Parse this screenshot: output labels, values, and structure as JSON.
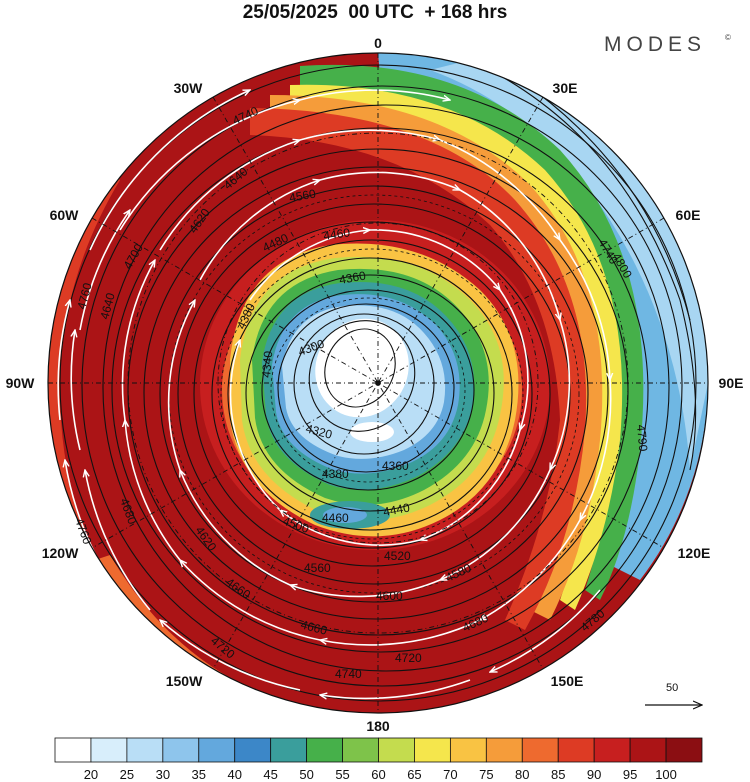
{
  "title": "25/05/2025  00 UTC  + 168 hrs",
  "brand": "MODES",
  "brand_mark": "©",
  "longitude_labels": {
    "lon_0": "0",
    "lon_30e": "30E",
    "lon_60e": "60E",
    "lon_90e": "90E",
    "lon_120e": "120E",
    "lon_150e": "150E",
    "lon_180": "180",
    "lon_150w": "150W",
    "lon_120w": "120W",
    "lon_90w": "90W",
    "lon_60w": "60W",
    "lon_30w": "30W"
  },
  "contour_labels": [
    "4300",
    "4320",
    "4340",
    "4360",
    "4380",
    "4440",
    "4460",
    "4480",
    "4500",
    "4520",
    "4560",
    "4580",
    "4600",
    "4620",
    "4640",
    "4660",
    "4680",
    "4700",
    "4720",
    "4740",
    "4760",
    "4780",
    "4790",
    "4800"
  ],
  "colorbar": {
    "labels": [
      "20",
      "25",
      "30",
      "35",
      "40",
      "45",
      "50",
      "55",
      "60",
      "65",
      "70",
      "75",
      "80",
      "85",
      "90",
      "95",
      "100"
    ],
    "colors": [
      "#ffffff",
      "#d8eefb",
      "#b9def6",
      "#8ec5ec",
      "#63a8dd",
      "#3c87c8",
      "#3a9e9c",
      "#46b04a",
      "#7ec34a",
      "#c4dc4e",
      "#f5e64c",
      "#f9c343",
      "#f59c3a",
      "#ee6a2f",
      "#dd3b24",
      "#c71f1f",
      "#ab1416",
      "#8b0e12"
    ]
  },
  "wind_reference": {
    "label": "50"
  },
  "map_colors": {
    "ocean_fill": "#b01a18",
    "ring_dark": "#a3161a",
    "band_red": "#d32b22",
    "band_orange": "#f08a35",
    "band_yellow": "#f7d54a",
    "band_green": "#5bb548",
    "band_blue_light": "#a8d6f2",
    "band_blue": "#4a9bd6",
    "core_white": "#ffffff",
    "contour": "#111111",
    "wind_arrow": "#ffffff"
  }
}
